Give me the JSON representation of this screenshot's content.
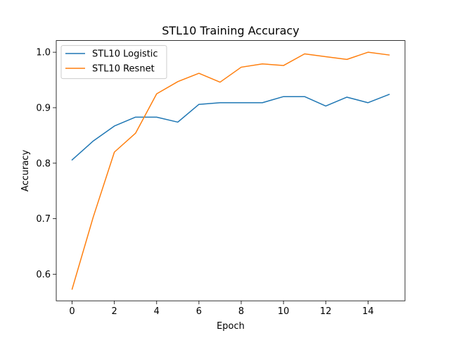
{
  "chart_data": {
    "type": "line",
    "title": "STL10 Training Accuracy",
    "xlabel": "Epoch",
    "ylabel": "Accuracy",
    "x": [
      0,
      1,
      2,
      3,
      4,
      5,
      6,
      7,
      8,
      9,
      10,
      11,
      12,
      13,
      14,
      15
    ],
    "xlim": [
      -0.75,
      15.75
    ],
    "ylim": [
      0.552,
      1.021
    ],
    "xticks": [
      0,
      2,
      4,
      6,
      8,
      10,
      12,
      14
    ],
    "xtick_labels": [
      "0",
      "2",
      "4",
      "6",
      "8",
      "10",
      "12",
      "14"
    ],
    "yticks": [
      0.6,
      0.7,
      0.8,
      0.9,
      1.0
    ],
    "ytick_labels": [
      "0.6",
      "0.7",
      "0.8",
      "0.9",
      "1.0"
    ],
    "grid": false,
    "legend_position": "top-left",
    "series": [
      {
        "name": "STL10 Logistic",
        "color": "#1f77b4",
        "values": [
          0.806,
          0.84,
          0.867,
          0.883,
          0.883,
          0.874,
          0.906,
          0.909,
          0.909,
          0.909,
          0.92,
          0.92,
          0.903,
          0.919,
          0.909,
          0.924
        ]
      },
      {
        "name": "STL10 Resnet",
        "color": "#ff7f0e",
        "values": [
          0.573,
          0.703,
          0.82,
          0.854,
          0.925,
          0.947,
          0.962,
          0.946,
          0.973,
          0.979,
          0.976,
          0.997,
          0.992,
          0.987,
          1.0,
          0.995
        ]
      }
    ]
  }
}
